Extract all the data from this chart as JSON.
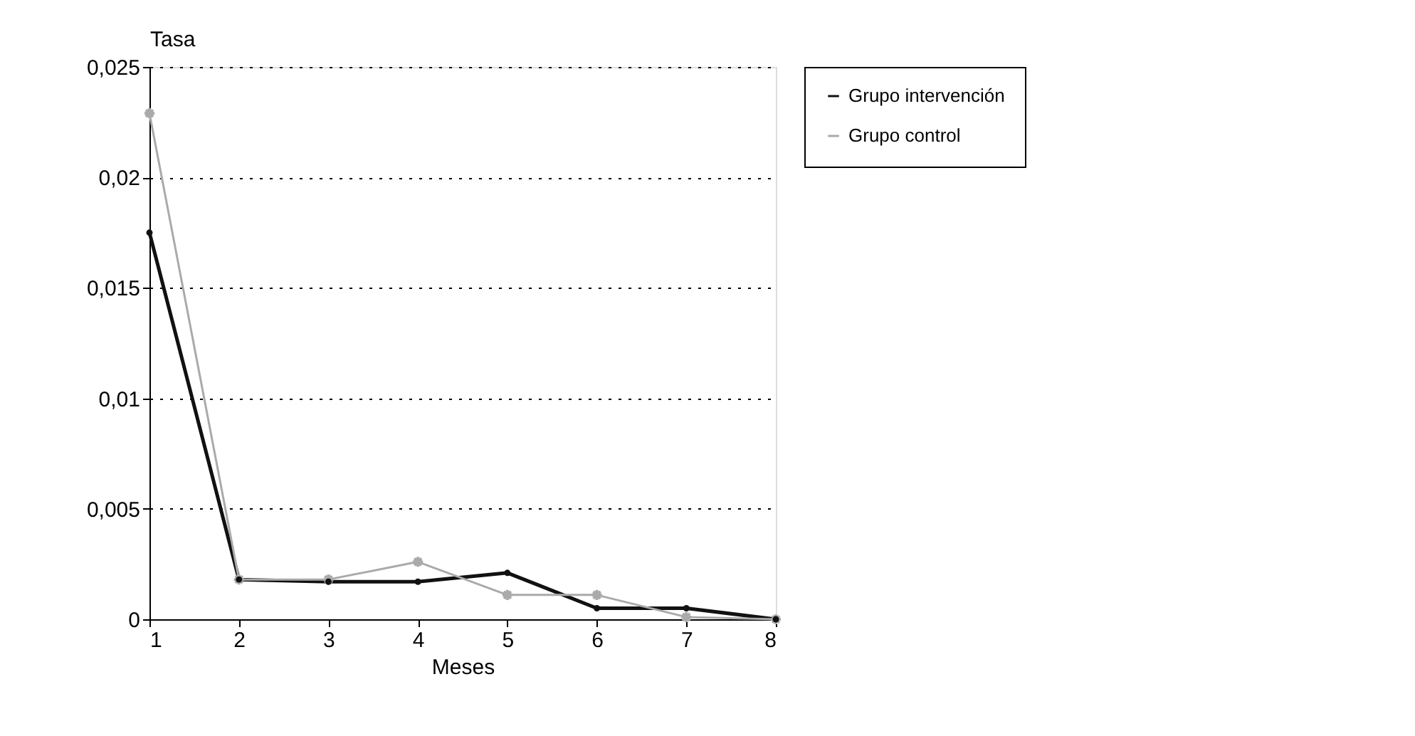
{
  "chart_data": {
    "type": "line",
    "xlabel": "Meses",
    "ylabel": "Tasa",
    "x": [
      1,
      2,
      3,
      4,
      5,
      6,
      7,
      8
    ],
    "series": [
      {
        "name": "Grupo intervención",
        "color": "#111111",
        "marker": "circle",
        "values": [
          0.0175,
          0.0018,
          0.0017,
          0.0017,
          0.0021,
          0.0005,
          0.0005,
          0
        ]
      },
      {
        "name": "Grupo control",
        "color": "#aaaaaa",
        "marker": "cross",
        "values": [
          0.0229,
          0.0018,
          0.0018,
          0.0026,
          0.0011,
          0.0011,
          0.0001,
          0
        ]
      }
    ],
    "xlim": [
      1,
      8
    ],
    "xticks": [
      1,
      2,
      3,
      4,
      5,
      6,
      7,
      8
    ],
    "ylim": [
      0,
      0.025
    ],
    "yticks": [
      0,
      {
        "value": 0.005,
        "label": "0,005"
      },
      {
        "value": 0.01,
        "label": "0,01"
      },
      {
        "value": 0.015,
        "label": "0,015"
      },
      {
        "value": 0.02,
        "label": "0,02"
      },
      {
        "value": 0.025,
        "label": "0,025"
      }
    ],
    "grid": "y",
    "legend": "right",
    "line_style": "solid"
  }
}
